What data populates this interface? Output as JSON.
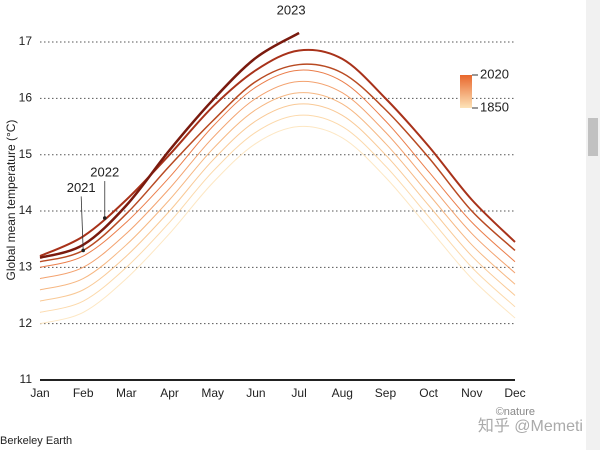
{
  "chart_data": {
    "type": "line",
    "y_label": "Global mean temperature (°C)",
    "categories": [
      "Jan",
      "Feb",
      "Mar",
      "Apr",
      "May",
      "Jun",
      "Jul",
      "Aug",
      "Sep",
      "Oct",
      "Nov",
      "Dec"
    ],
    "ylim": [
      11,
      17.4
    ],
    "yticks": [
      11,
      12,
      13,
      14,
      15,
      16,
      17
    ],
    "grid": true,
    "legend": {
      "position": "upper right",
      "labels": [
        "2020",
        "1850"
      ],
      "colors": [
        "#e8672c",
        "#fde3b8"
      ]
    },
    "series": [
      {
        "color": "#fde3b8",
        "width": 1,
        "values": [
          12.0,
          12.2,
          12.8,
          13.6,
          14.5,
          15.2,
          15.5,
          15.3,
          14.6,
          13.7,
          12.8,
          12.1
        ]
      },
      {
        "color": "#fbd29c",
        "width": 1,
        "values": [
          12.2,
          12.4,
          13.0,
          13.8,
          14.7,
          15.4,
          15.7,
          15.5,
          14.8,
          13.9,
          13.0,
          12.3
        ]
      },
      {
        "color": "#f8bf84",
        "width": 1,
        "values": [
          12.4,
          12.6,
          13.2,
          14.0,
          14.9,
          15.6,
          15.9,
          15.7,
          15.0,
          14.1,
          13.2,
          12.5
        ]
      },
      {
        "color": "#f5aa6c",
        "width": 1,
        "values": [
          12.6,
          12.8,
          13.4,
          14.2,
          15.1,
          15.8,
          16.1,
          15.9,
          15.2,
          14.3,
          13.4,
          12.7
        ]
      },
      {
        "color": "#f19256",
        "width": 1,
        "values": [
          12.8,
          13.0,
          13.6,
          14.4,
          15.3,
          16.0,
          16.3,
          16.1,
          15.4,
          14.5,
          13.6,
          12.9
        ]
      },
      {
        "color": "#e8672c",
        "width": 1,
        "values": [
          13.0,
          13.2,
          13.8,
          14.6,
          15.5,
          16.2,
          16.5,
          16.3,
          15.6,
          14.7,
          13.8,
          13.1
        ]
      },
      {
        "name": "2021",
        "color": "#b84a22",
        "width": 1.5,
        "values": [
          13.1,
          13.3,
          13.95,
          14.8,
          15.6,
          16.3,
          16.6,
          16.45,
          15.8,
          14.95,
          14.0,
          13.3
        ]
      },
      {
        "name": "2022",
        "color": "#a8321a",
        "width": 2,
        "values": [
          13.2,
          13.55,
          14.2,
          15.0,
          15.85,
          16.5,
          16.85,
          16.7,
          16.0,
          15.15,
          14.2,
          13.45
        ]
      },
      {
        "name": "2023",
        "color": "#7a1a0e",
        "width": 2.5,
        "values": [
          13.17,
          13.4,
          14.1,
          15.08,
          15.97,
          16.72,
          17.16,
          null,
          null,
          null,
          null,
          null
        ]
      }
    ],
    "annotations": [
      {
        "text": "2021",
        "series": 6,
        "point": 1
      },
      {
        "text": "2022",
        "series": 7,
        "point": 1.5
      },
      {
        "text": "2023",
        "series": 8,
        "point": 6
      }
    ],
    "source": "Berkeley Earth",
    "credit": "©nature",
    "watermark": "知乎 @Memeti"
  }
}
